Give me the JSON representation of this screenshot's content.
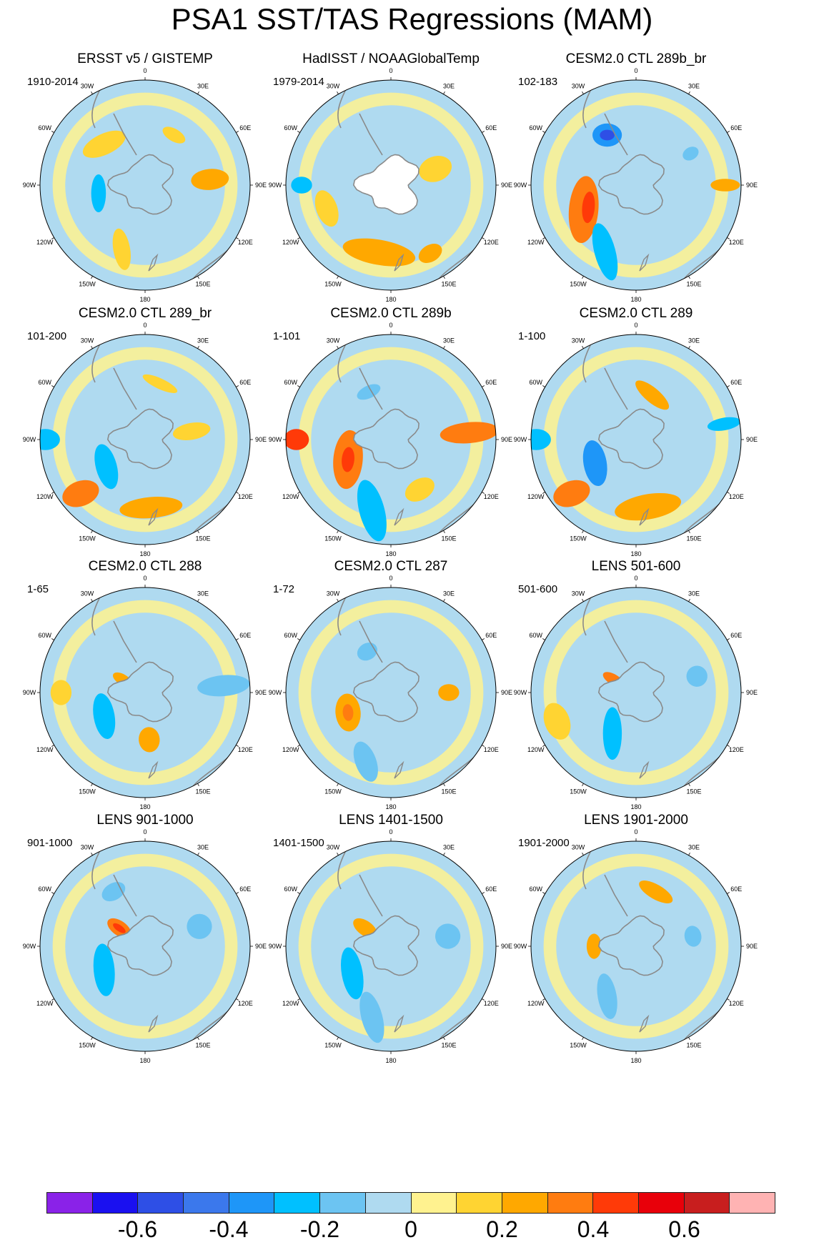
{
  "title": "PSA1 SST/TAS Regressions (MAM)",
  "longitude_labels": [
    "0",
    "30E",
    "60E",
    "90E",
    "120E",
    "150E",
    "180",
    "150W",
    "120W",
    "90W",
    "60W",
    "30W"
  ],
  "panels": [
    {
      "name": "ERSST v5 / GISTEMP",
      "period": "1910-2014",
      "blobs": [
        {
          "lon": -45,
          "r": 0.55,
          "rx": 0.22,
          "ry": 0.1,
          "level": 0.15,
          "rot": 20
        },
        {
          "lon": -100,
          "r": 0.45,
          "rx": 0.18,
          "ry": 0.07,
          "level": -0.25,
          "rot": 10
        },
        {
          "lon": 85,
          "r": 0.62,
          "rx": 0.1,
          "ry": 0.18,
          "level": 0.25,
          "rot": 0
        },
        {
          "lon": -160,
          "r": 0.65,
          "rx": 0.2,
          "ry": 0.08,
          "level": 0.15,
          "rot": 60
        },
        {
          "lon": 30,
          "r": 0.55,
          "rx": 0.12,
          "ry": 0.06,
          "level": 0.15,
          "rot": 0
        },
        {
          "lon": -75,
          "r": 0.15,
          "rx": 0.06,
          "ry": 0.04,
          "level": 0.3,
          "rot": 0
        }
      ]
    },
    {
      "name": "HadISST / NOAAGlobalTemp",
      "period": "1979-2014",
      "blobs": [
        {
          "lon": -170,
          "r": 0.65,
          "rx": 0.35,
          "ry": 0.12,
          "level": 0.2,
          "rot": 0
        },
        {
          "lon": 70,
          "r": 0.45,
          "rx": 0.12,
          "ry": 0.16,
          "level": 0.15,
          "rot": 0
        },
        {
          "lon": -110,
          "r": 0.65,
          "rx": 0.18,
          "ry": 0.1,
          "level": 0.15,
          "rot": 0
        },
        {
          "lon": -90,
          "r": 0.85,
          "rx": 0.08,
          "ry": 0.1,
          "level": -0.25,
          "rot": 0
        },
        {
          "lon": 150,
          "r": 0.75,
          "rx": 0.12,
          "ry": 0.08,
          "level": 0.2,
          "rot": 0
        }
      ]
    },
    {
      "name": "CESM2.0 CTL 289b_br",
      "period": "102-183",
      "blobs": [
        {
          "lon": -30,
          "r": 0.55,
          "rx": 0.14,
          "ry": 0.11,
          "level": -0.4,
          "rot": 30
        },
        {
          "lon": -30,
          "r": 0.55,
          "rx": 0.07,
          "ry": 0.05,
          "level": -0.55,
          "rot": 30
        },
        {
          "lon": -115,
          "r": 0.55,
          "rx": 0.32,
          "ry": 0.14,
          "level": 0.35,
          "rot": 30
        },
        {
          "lon": -115,
          "r": 0.5,
          "rx": 0.15,
          "ry": 0.06,
          "level": 0.45,
          "rot": 30
        },
        {
          "lon": -155,
          "r": 0.7,
          "rx": 0.28,
          "ry": 0.1,
          "level": -0.25,
          "rot": 50
        },
        {
          "lon": 90,
          "r": 0.85,
          "rx": 0.06,
          "ry": 0.14,
          "level": 0.25,
          "rot": 0
        },
        {
          "lon": 60,
          "r": 0.6,
          "rx": 0.06,
          "ry": 0.08,
          "level": -0.2,
          "rot": 0
        }
      ]
    },
    {
      "name": "CESM2.0 CTL 289_br",
      "period": "101-200",
      "blobs": [
        {
          "lon": -125,
          "r": 0.45,
          "rx": 0.22,
          "ry": 0.1,
          "level": -0.3,
          "rot": 20
        },
        {
          "lon": -130,
          "r": 0.8,
          "rx": 0.12,
          "ry": 0.18,
          "level": 0.35,
          "rot": 20
        },
        {
          "lon": 175,
          "r": 0.65,
          "rx": 0.3,
          "ry": 0.1,
          "level": 0.25,
          "rot": 0
        },
        {
          "lon": -90,
          "r": 0.95,
          "rx": 0.1,
          "ry": 0.14,
          "level": -0.3,
          "rot": 0
        },
        {
          "lon": 80,
          "r": 0.45,
          "rx": 0.08,
          "ry": 0.18,
          "level": 0.15,
          "rot": 0
        },
        {
          "lon": 15,
          "r": 0.55,
          "rx": 0.18,
          "ry": 0.05,
          "level": 0.15,
          "rot": 10
        }
      ]
    },
    {
      "name": "CESM2.0 CTL 289b",
      "period": "1-101",
      "blobs": [
        {
          "lon": -115,
          "r": 0.45,
          "rx": 0.28,
          "ry": 0.14,
          "level": 0.35,
          "rot": 30
        },
        {
          "lon": -115,
          "r": 0.45,
          "rx": 0.12,
          "ry": 0.06,
          "level": 0.45,
          "rot": 30
        },
        {
          "lon": -90,
          "r": 0.9,
          "rx": 0.1,
          "ry": 0.12,
          "level": 0.4,
          "rot": 0
        },
        {
          "lon": -165,
          "r": 0.7,
          "rx": 0.3,
          "ry": 0.12,
          "level": -0.25,
          "rot": 60
        },
        {
          "lon": 85,
          "r": 0.75,
          "rx": 0.1,
          "ry": 0.28,
          "level": 0.35,
          "rot": 0
        },
        {
          "lon": 150,
          "r": 0.55,
          "rx": 0.15,
          "ry": 0.1,
          "level": 0.15,
          "rot": 0
        },
        {
          "lon": -25,
          "r": 0.5,
          "rx": 0.12,
          "ry": 0.06,
          "level": -0.2,
          "rot": 0
        }
      ]
    },
    {
      "name": "CESM2.0 CTL 289",
      "period": "1-100",
      "blobs": [
        {
          "lon": -120,
          "r": 0.45,
          "rx": 0.22,
          "ry": 0.11,
          "level": -0.35,
          "rot": 20
        },
        {
          "lon": -130,
          "r": 0.8,
          "rx": 0.12,
          "ry": 0.18,
          "level": 0.35,
          "rot": 20
        },
        {
          "lon": 170,
          "r": 0.65,
          "rx": 0.32,
          "ry": 0.12,
          "level": 0.25,
          "rot": 0
        },
        {
          "lon": -90,
          "r": 0.95,
          "rx": 0.1,
          "ry": 0.14,
          "level": -0.3,
          "rot": 0
        },
        {
          "lon": 80,
          "r": 0.85,
          "rx": 0.06,
          "ry": 0.16,
          "level": -0.25,
          "rot": 0
        },
        {
          "lon": 20,
          "r": 0.45,
          "rx": 0.2,
          "ry": 0.07,
          "level": 0.2,
          "rot": 20
        }
      ]
    },
    {
      "name": "CESM2.0 CTL 288",
      "period": "1-65",
      "blobs": [
        {
          "lon": -120,
          "r": 0.45,
          "rx": 0.22,
          "ry": 0.1,
          "level": -0.25,
          "rot": 20
        },
        {
          "lon": -60,
          "r": 0.25,
          "rx": 0.05,
          "ry": 0.1,
          "level": 0.25,
          "rot": 0
        },
        {
          "lon": 85,
          "r": 0.75,
          "rx": 0.1,
          "ry": 0.25,
          "level": -0.2,
          "rot": 0
        },
        {
          "lon": 175,
          "r": 0.45,
          "rx": 0.1,
          "ry": 0.12,
          "level": 0.2,
          "rot": 0
        },
        {
          "lon": -90,
          "r": 0.8,
          "rx": 0.12,
          "ry": 0.1,
          "level": 0.1,
          "rot": 0
        }
      ]
    },
    {
      "name": "CESM2.0 CTL 287",
      "period": "1-72",
      "blobs": [
        {
          "lon": -115,
          "r": 0.45,
          "rx": 0.18,
          "ry": 0.12,
          "level": 0.25,
          "rot": 20
        },
        {
          "lon": -115,
          "r": 0.45,
          "rx": 0.08,
          "ry": 0.05,
          "level": 0.3,
          "rot": 20
        },
        {
          "lon": -160,
          "r": 0.7,
          "rx": 0.2,
          "ry": 0.1,
          "level": -0.2,
          "rot": 50
        },
        {
          "lon": 90,
          "r": 0.55,
          "rx": 0.08,
          "ry": 0.1,
          "level": 0.2,
          "rot": 0
        },
        {
          "lon": -30,
          "r": 0.45,
          "rx": 0.1,
          "ry": 0.08,
          "level": -0.2,
          "rot": 0
        }
      ]
    },
    {
      "name": "LENS 501-600",
      "period": "501-600",
      "blobs": [
        {
          "lon": -150,
          "r": 0.45,
          "rx": 0.25,
          "ry": 0.09,
          "level": -0.25,
          "rot": 60
        },
        {
          "lon": -60,
          "r": 0.25,
          "rx": 0.05,
          "ry": 0.11,
          "level": 0.3,
          "rot": 0
        },
        {
          "lon": 75,
          "r": 0.6,
          "rx": 0.1,
          "ry": 0.1,
          "level": -0.2,
          "rot": 0
        },
        {
          "lon": -110,
          "r": 0.8,
          "rx": 0.18,
          "ry": 0.12,
          "level": 0.1,
          "rot": 0
        }
      ]
    },
    {
      "name": "LENS 901-1000",
      "period": "901-1000",
      "blobs": [
        {
          "lon": -120,
          "r": 0.45,
          "rx": 0.25,
          "ry": 0.1,
          "level": -0.25,
          "rot": 25
        },
        {
          "lon": -55,
          "r": 0.3,
          "rx": 0.07,
          "ry": 0.13,
          "level": 0.3,
          "rot": 0
        },
        {
          "lon": -55,
          "r": 0.3,
          "rx": 0.03,
          "ry": 0.07,
          "level": 0.45,
          "rot": 0
        },
        {
          "lon": 70,
          "r": 0.55,
          "rx": 0.12,
          "ry": 0.12,
          "level": -0.2,
          "rot": 0
        },
        {
          "lon": -30,
          "r": 0.6,
          "rx": 0.12,
          "ry": 0.08,
          "level": -0.2,
          "rot": 0
        }
      ]
    },
    {
      "name": "LENS 1401-1500",
      "period": "1401-1500",
      "blobs": [
        {
          "lon": -125,
          "r": 0.45,
          "rx": 0.25,
          "ry": 0.1,
          "level": -0.3,
          "rot": 25
        },
        {
          "lon": -55,
          "r": 0.3,
          "rx": 0.07,
          "ry": 0.13,
          "level": 0.25,
          "rot": 0
        },
        {
          "lon": 80,
          "r": 0.55,
          "rx": 0.12,
          "ry": 0.12,
          "level": -0.2,
          "rot": 0
        },
        {
          "lon": -165,
          "r": 0.7,
          "rx": 0.25,
          "ry": 0.1,
          "level": -0.2,
          "rot": 60
        }
      ]
    },
    {
      "name": "LENS 1901-2000",
      "period": "1901-2000",
      "blobs": [
        {
          "lon": -90,
          "r": 0.4,
          "rx": 0.12,
          "ry": 0.07,
          "level": 0.2,
          "rot": 0
        },
        {
          "lon": 20,
          "r": 0.55,
          "rx": 0.18,
          "ry": 0.07,
          "level": 0.2,
          "rot": 10
        },
        {
          "lon": 80,
          "r": 0.55,
          "rx": 0.1,
          "ry": 0.08,
          "level": -0.2,
          "rot": 0
        },
        {
          "lon": -150,
          "r": 0.55,
          "rx": 0.22,
          "ry": 0.09,
          "level": -0.15,
          "rot": 50
        }
      ]
    }
  ],
  "colorbar": {
    "colors": [
      "#8a22e8",
      "#1a10f0",
      "#2e4fe6",
      "#3b78ec",
      "#1e96f8",
      "#00c0ff",
      "#6cc4f2",
      "#afdaf0",
      "#fff28f",
      "#ffd432",
      "#ffa800",
      "#ff7c10",
      "#ff3a08",
      "#e8000a",
      "#c81e1e",
      "#ffb3b3"
    ],
    "labels": [
      "-0.6",
      "-0.4",
      "-0.2",
      "0",
      "0.2",
      "0.4",
      "0.6"
    ],
    "label_values": [
      -0.6,
      -0.4,
      -0.2,
      0,
      0.2,
      0.4,
      0.6
    ]
  }
}
